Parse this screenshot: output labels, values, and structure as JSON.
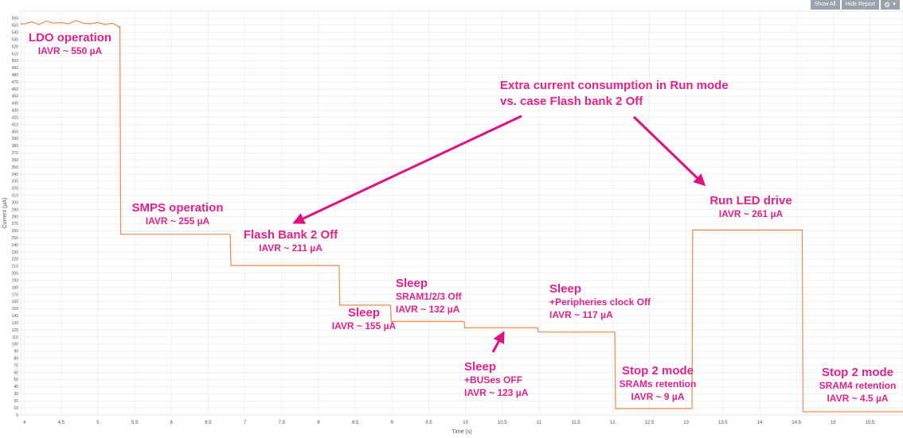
{
  "toolbar": {
    "show_all_label": "Show All",
    "hide_report_label": "Hide Report",
    "settings_icon": "gear-icon",
    "dropdown_icon": "chevron-down-icon"
  },
  "colors": {
    "trace": "#f08a4b",
    "annotation": "#e6218a",
    "arrow": "#e01082",
    "grid": "#e8e8e8",
    "axis_text": "#555555"
  },
  "chart_data": {
    "type": "line",
    "xlabel": "Time (s)",
    "ylabel": "Current (µA)",
    "xlim": [
      3.95,
      15.95
    ],
    "ylim": [
      0,
      570
    ],
    "x_ticks": [
      4,
      4.5,
      5,
      5.5,
      6,
      6.5,
      7,
      7.5,
      8,
      8.5,
      9,
      9.5,
      10,
      10.5,
      11,
      11.5,
      12,
      12.5,
      13,
      13.5,
      14,
      14.5,
      15,
      15.5
    ],
    "x_tick_labels": [
      "4",
      "4.5",
      "5",
      "5.5",
      "6",
      "6.5",
      "7",
      "7.5",
      "8",
      "8.5",
      "9",
      "9.5",
      "10",
      "10.5",
      "11",
      "11.5",
      "12",
      "12.5",
      "13",
      "13.5",
      "14",
      "14.5",
      "15",
      "15.5"
    ],
    "y_ticks": [
      0,
      10,
      20,
      30,
      40,
      50,
      60,
      70,
      80,
      90,
      100,
      110,
      120,
      130,
      140,
      150,
      160,
      170,
      180,
      190,
      200,
      210,
      220,
      230,
      240,
      250,
      260,
      270,
      280,
      290,
      300,
      310,
      320,
      330,
      340,
      350,
      360,
      370,
      380,
      390,
      400,
      410,
      420,
      430,
      440,
      450,
      460,
      470,
      480,
      490,
      500,
      510,
      520,
      530,
      540,
      550,
      560
    ],
    "grid": true,
    "series": [
      {
        "x": [
          3.95,
          4.0,
          4.1,
          4.2,
          4.3,
          4.4,
          4.5,
          4.6,
          4.7,
          4.8,
          4.9,
          5.0,
          5.1,
          5.2,
          5.25,
          5.29,
          5.3,
          5.31,
          6.8,
          6.81,
          8.28,
          8.29,
          8.98,
          8.99,
          9.98,
          9.99,
          10.98,
          10.99,
          12.03,
          12.04,
          13.08,
          13.09,
          14.58,
          14.59,
          15.95
        ],
        "y": [
          552,
          552,
          555,
          551,
          556,
          553,
          554,
          552,
          557,
          553,
          552,
          554,
          551,
          553,
          550,
          547,
          548,
          255,
          255,
          211,
          211,
          155,
          155,
          132,
          132,
          123,
          123,
          117,
          117,
          9,
          9,
          261,
          261,
          4.5,
          4.5
        ]
      }
    ],
    "annotations": [
      {
        "key": "ldo",
        "title": "LDO operation",
        "value": "IAVR ~ 550 µA"
      },
      {
        "key": "smps",
        "title": "SMPS operation",
        "value": "IAVR ~ 255 µA"
      },
      {
        "key": "flash",
        "title": "Flash Bank 2 Off",
        "value": "IAVR ~ 211 µA"
      },
      {
        "key": "sleep",
        "title": "Sleep",
        "value": "IAVR ~ 155 µA"
      },
      {
        "key": "sram",
        "title": "Sleep",
        "subtitle": "SRAM1/2/3 Off",
        "value": "IAVR ~ 132 µA"
      },
      {
        "key": "buses",
        "title": "Sleep",
        "subtitle": "+BUSes OFF",
        "value": "IAVR ~ 123 µA"
      },
      {
        "key": "periph",
        "title": "Sleep",
        "subtitle": "+Peripheries clock Off",
        "value": "IAVR ~ 117 µA"
      },
      {
        "key": "stop2a",
        "title": "Stop 2 mode",
        "subtitle": "SRAMs retention",
        "value": "IAVR ~ 9 µA"
      },
      {
        "key": "led",
        "title": "Run LED drive",
        "value": "IAVR ~ 261 µA"
      },
      {
        "key": "stop2b",
        "title": "Stop 2 mode",
        "subtitle": "SRAM4 retention",
        "value": "IAVR ~ 4.5 µA"
      },
      {
        "key": "extra",
        "title": "Extra current consumption in Run mode",
        "subtitle": "vs. case Flash bank 2 Off"
      }
    ]
  }
}
